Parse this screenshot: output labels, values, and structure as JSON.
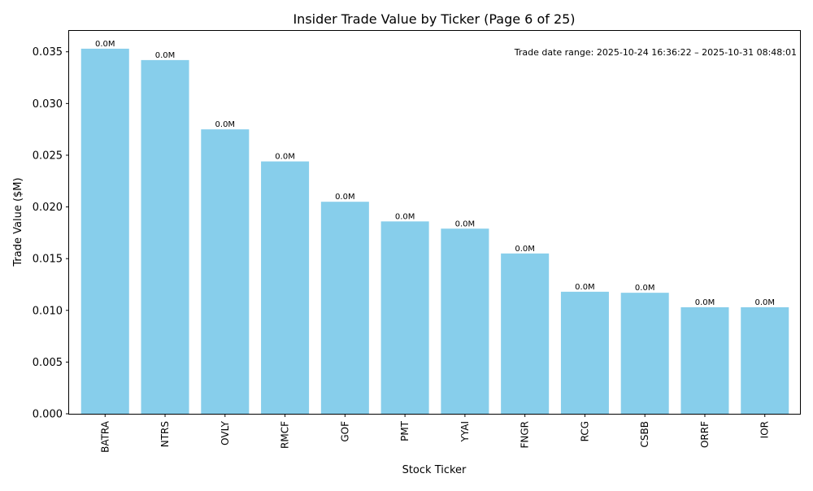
{
  "chart_data": {
    "type": "bar",
    "title": "Insider Trade Value by Ticker (Page 6 of 25)",
    "xlabel": "Stock Ticker",
    "ylabel": "Trade Value ($M)",
    "annotation": "Trade date range: 2025-10-24 16:36:22 – 2025-10-31 08:48:01",
    "categories": [
      "BATRA",
      "NTRS",
      "OVLY",
      "RMCF",
      "GOF",
      "PMT",
      "YYAI",
      "FNGR",
      "RCG",
      "CSBB",
      "ORRF",
      "IOR"
    ],
    "values": [
      0.0353,
      0.0342,
      0.0275,
      0.0244,
      0.0205,
      0.0186,
      0.0179,
      0.0155,
      0.0118,
      0.0117,
      0.0103,
      0.0103
    ],
    "data_labels": [
      "0.0M",
      "0.0M",
      "0.0M",
      "0.0M",
      "0.0M",
      "0.0M",
      "0.0M",
      "0.0M",
      "0.0M",
      "0.0M",
      "0.0M",
      "0.0M"
    ],
    "yticks": [
      0.0,
      0.005,
      0.01,
      0.015,
      0.02,
      0.025,
      0.03,
      0.035
    ],
    "ytick_labels": [
      "0.000",
      "0.005",
      "0.010",
      "0.015",
      "0.020",
      "0.025",
      "0.030",
      "0.035"
    ],
    "ylim": [
      0,
      0.0371
    ],
    "grid": false,
    "bar_color": "#87ceeb"
  }
}
